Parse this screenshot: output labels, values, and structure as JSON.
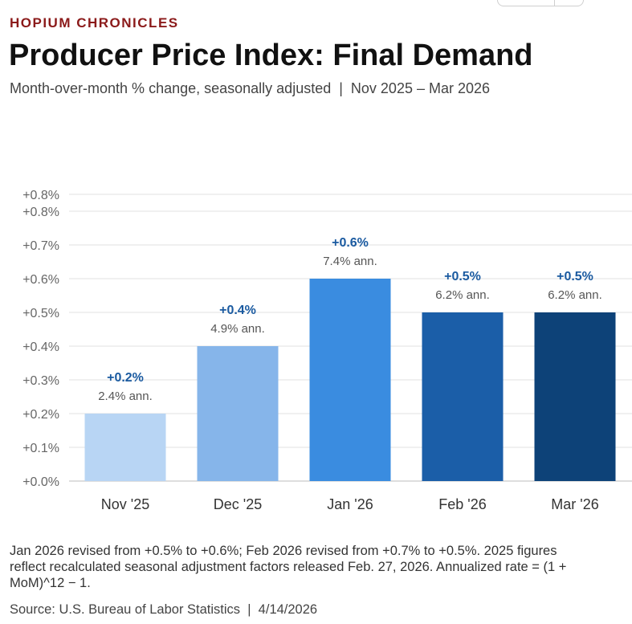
{
  "header": {
    "brand": "HOPIUM CHRONICLES",
    "title": "Producer Price Index: Final Demand",
    "subtitle": "Month-over-month % change, seasonally adjusted  |  Nov 2025 – Mar 2026"
  },
  "chart_data": {
    "type": "bar",
    "title": "Producer Price Index: Final Demand",
    "xlabel": "",
    "ylabel": "",
    "ylim": [
      0,
      0.85
    ],
    "grid": true,
    "categories": [
      "Nov '25",
      "Dec '25",
      "Jan '26",
      "Feb '26",
      "Mar '26"
    ],
    "values": [
      0.2,
      0.4,
      0.6,
      0.5,
      0.5
    ],
    "value_labels": [
      "+0.2%",
      "+0.4%",
      "+0.6%",
      "+0.5%",
      "+0.5%"
    ],
    "annualized_labels": [
      "2.4% ann.",
      "4.9% ann.",
      "7.4% ann.",
      "6.2% ann.",
      "6.2% ann."
    ],
    "y_ticks": [
      {
        "value": 0.0,
        "label": "+0.0%"
      },
      {
        "value": 0.1,
        "label": "+0.1%"
      },
      {
        "value": 0.2,
        "label": "+0.2%"
      },
      {
        "value": 0.3,
        "label": "+0.3%"
      },
      {
        "value": 0.4,
        "label": "+0.4%"
      },
      {
        "value": 0.5,
        "label": "+0.5%"
      },
      {
        "value": 0.6,
        "label": "+0.6%"
      },
      {
        "value": 0.7,
        "label": "+0.7%"
      },
      {
        "value": 0.8,
        "label": "+0.8%"
      },
      {
        "value": 0.85,
        "label": "+0.8%"
      }
    ],
    "colors": [
      "#b8d5f4",
      "#86b5ea",
      "#3a8ce0",
      "#1b5ea8",
      "#0d4278"
    ],
    "label_color": "#1a5aa0"
  },
  "footer": {
    "note": "Jan 2026 revised from +0.5% to +0.6%; Feb 2026 revised from +0.7% to +0.5%. 2025 figures reflect recalculated seasonal adjustment factors released Feb. 27, 2026. Annualized rate = (1 + MoM)^12 − 1.",
    "source": "Source: U.S. Bureau of Labor Statistics  |  4/14/2026"
  }
}
